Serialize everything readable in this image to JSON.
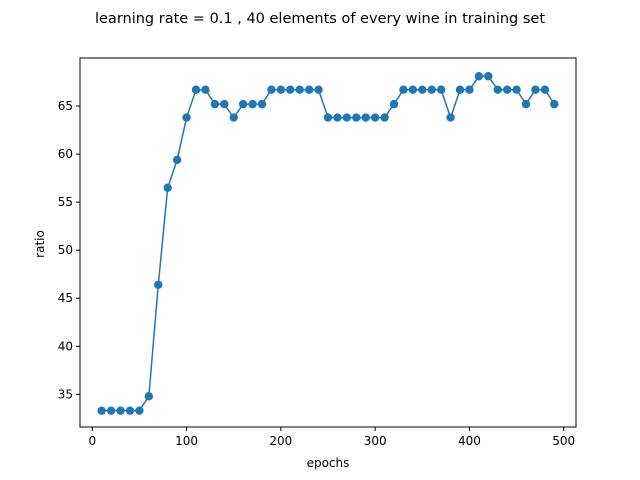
{
  "chart_data": {
    "type": "line",
    "title": "learning rate = 0.1 , 40 elements of every wine in training set",
    "xlabel": "epochs",
    "ylabel": "ratio",
    "xlim": [
      -13,
      513
    ],
    "ylim": [
      31.6,
      70.0
    ],
    "xticks": [
      0,
      100,
      200,
      300,
      400,
      500
    ],
    "yticks": [
      35,
      40,
      45,
      50,
      55,
      60,
      65
    ],
    "grid": false,
    "legend": "none",
    "series": [
      {
        "color": "#1f77b4",
        "marker": "circle",
        "x": [
          10,
          20,
          30,
          40,
          50,
          60,
          70,
          80,
          90,
          100,
          110,
          120,
          130,
          140,
          150,
          160,
          170,
          180,
          190,
          200,
          210,
          220,
          230,
          240,
          250,
          260,
          270,
          280,
          290,
          300,
          310,
          320,
          330,
          340,
          350,
          360,
          370,
          380,
          390,
          400,
          410,
          420,
          430,
          440,
          450,
          460,
          470,
          480,
          490
        ],
        "y": [
          33.3,
          33.3,
          33.3,
          33.3,
          33.3,
          34.8,
          46.4,
          56.5,
          59.4,
          63.8,
          66.7,
          66.7,
          65.2,
          65.2,
          63.8,
          65.2,
          65.2,
          65.2,
          66.7,
          66.7,
          66.7,
          66.7,
          66.7,
          66.7,
          63.8,
          63.8,
          63.8,
          63.8,
          63.8,
          63.8,
          63.8,
          65.2,
          66.7,
          66.7,
          66.7,
          66.7,
          66.7,
          63.8,
          66.7,
          66.7,
          68.1,
          68.1,
          66.7,
          66.7,
          66.7,
          65.2,
          66.7,
          66.7,
          65.2
        ]
      }
    ]
  }
}
